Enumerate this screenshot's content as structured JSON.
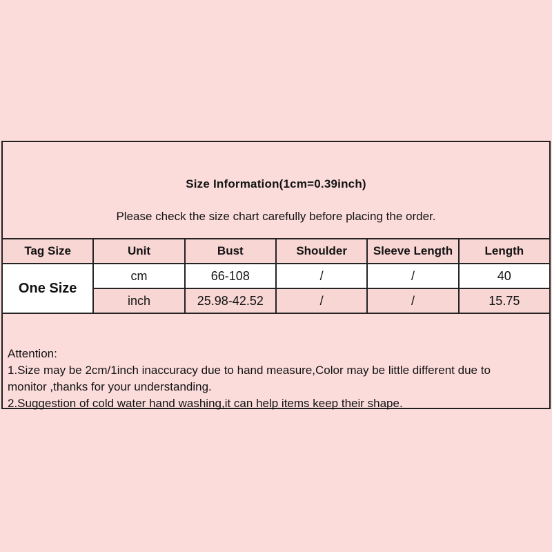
{
  "page": {
    "background_color": "#fbdcdb",
    "panel_border_color": "#1f1f1f",
    "table_pink_color": "#f8d6d4",
    "table_white_color": "#ffffff"
  },
  "size_info": {
    "title": "Size Information(1cm=0.39inch)",
    "subtitle": "Please check the size chart carefully before placing the order.",
    "table": {
      "headers": [
        "Tag Size",
        "Unit",
        "Bust",
        "Shoulder",
        "Sleeve Length",
        "Length"
      ],
      "tag_size": "One Size",
      "rows": [
        {
          "unit": "cm",
          "bust": "66-108",
          "shoulder": "/",
          "sleeve_length": "/",
          "length": "40"
        },
        {
          "unit": "inch",
          "bust": "25.98-42.52",
          "shoulder": "/",
          "sleeve_length": "/",
          "length": "15.75"
        }
      ]
    },
    "attention": {
      "heading": "Attention:",
      "line1": "1.Size may be 2cm/1inch inaccuracy due to hand measure,Color may be little different due to",
      "line2": "monitor ,thanks for your understanding.",
      "line3": "2.Suggestion of cold water hand washing,it can help items keep their shape."
    }
  }
}
